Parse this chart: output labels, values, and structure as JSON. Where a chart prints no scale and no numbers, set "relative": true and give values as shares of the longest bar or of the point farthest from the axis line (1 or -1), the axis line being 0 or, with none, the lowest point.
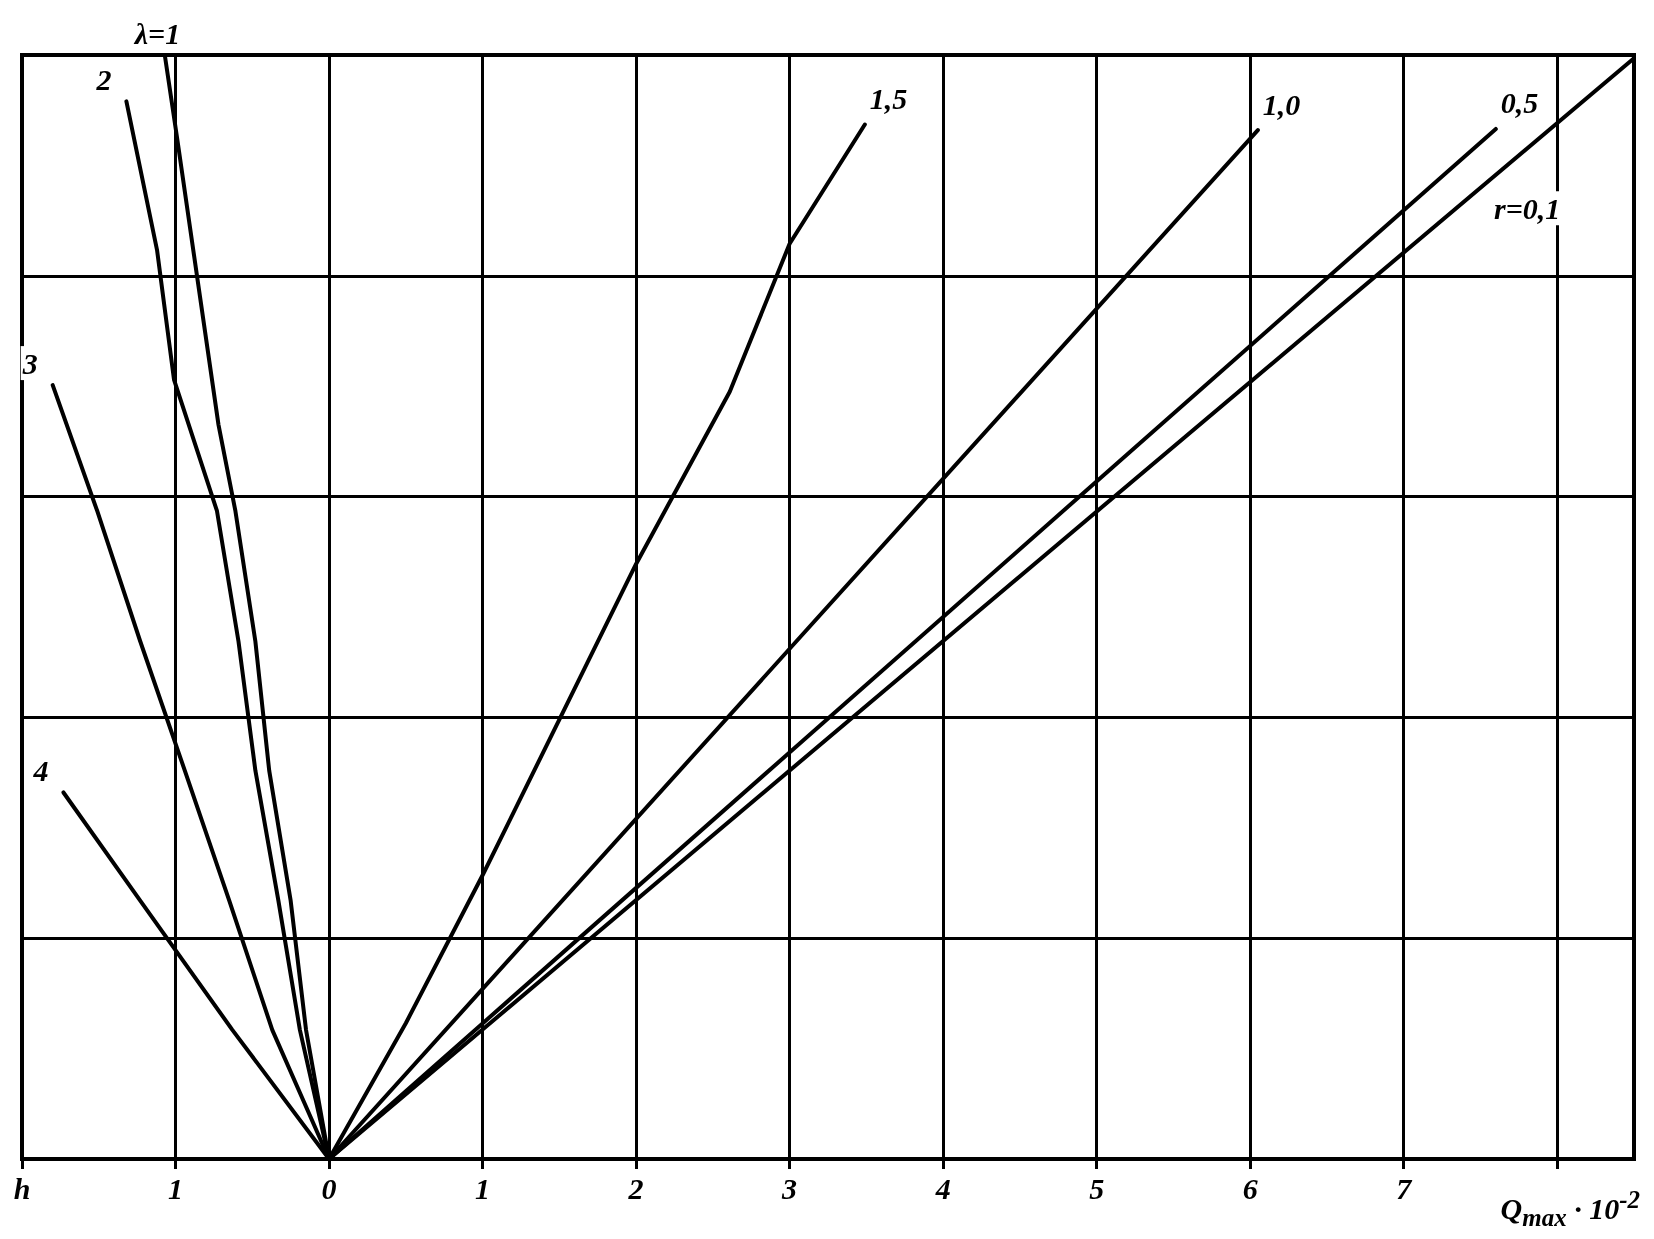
{
  "chart_data": {
    "type": "line",
    "relative": true,
    "xlabel": "Q$_{max}$ · 10$^{-2}$",
    "xlim": [
      -2,
      8.5
    ],
    "xticks": [
      {
        "value": -2,
        "label": "h"
      },
      {
        "value": -1,
        "label": "1"
      },
      0,
      1,
      2,
      3,
      4,
      5,
      6,
      7,
      {
        "value": 8,
        "label": null
      }
    ],
    "grid": true,
    "legend": false,
    "series": [
      {
        "name": "λ=1",
        "color": "#000000",
        "x": [
          0,
          -0.15,
          -0.25,
          -0.39,
          -0.48,
          -0.61,
          -0.72,
          -0.99,
          -1.07
        ],
        "values": [
          0,
          0.117,
          0.234,
          0.352,
          0.469,
          0.587,
          0.665,
          0.925,
          1
        ]
      },
      {
        "name": "2",
        "color": "#000000",
        "x": [
          0,
          -0.19,
          -0.33,
          -0.48,
          -0.59,
          -0.73,
          -1.01,
          -1.12,
          -1.32
        ],
        "values": [
          0,
          0.117,
          0.234,
          0.352,
          0.469,
          0.587,
          0.706,
          0.823,
          0.958
        ]
      },
      {
        "name": "3",
        "color": "#000000",
        "x": [
          0,
          -0.37,
          -0.65,
          -0.94,
          -1.23,
          -1.51,
          -1.8
        ],
        "values": [
          0,
          0.117,
          0.234,
          0.352,
          0.469,
          0.587,
          0.701
        ]
      },
      {
        "name": "4",
        "color": "#000000",
        "x": [
          0,
          -0.63,
          -1.23,
          -1.73
        ],
        "values": [
          0,
          0.117,
          0.234,
          0.332
        ]
      },
      {
        "name": "1,5",
        "color": "#000000",
        "x": [
          0,
          0.5,
          1,
          2,
          2.61,
          3,
          3.49
        ],
        "values": [
          0,
          0.123,
          0.257,
          0.539,
          0.695,
          0.829,
          0.937
        ]
      },
      {
        "name": "1,0",
        "color": "#000000",
        "x": [
          0,
          6.05
        ],
        "values": [
          0,
          0.932
        ]
      },
      {
        "name": "0,5",
        "color": "#000000",
        "x": [
          0,
          7.6
        ],
        "values": [
          0,
          0.933
        ]
      },
      {
        "name": "r=0,1",
        "color": "#000000",
        "x": [
          0,
          8.5
        ],
        "values": [
          0,
          0.997
        ]
      }
    ]
  }
}
